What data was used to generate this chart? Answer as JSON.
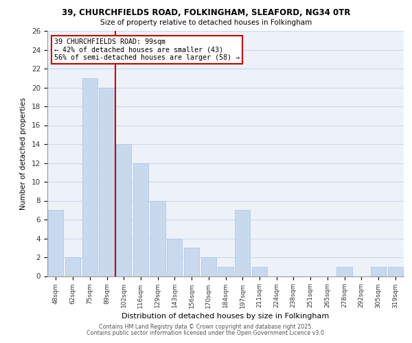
{
  "title_line1": "39, CHURCHFIELDS ROAD, FOLKINGHAM, SLEAFORD, NG34 0TR",
  "title_line2": "Size of property relative to detached houses in Folkingham",
  "xlabel": "Distribution of detached houses by size in Folkingham",
  "ylabel": "Number of detached properties",
  "bar_labels": [
    "48sqm",
    "62sqm",
    "75sqm",
    "89sqm",
    "102sqm",
    "116sqm",
    "129sqm",
    "143sqm",
    "156sqm",
    "170sqm",
    "184sqm",
    "197sqm",
    "211sqm",
    "224sqm",
    "238sqm",
    "251sqm",
    "265sqm",
    "278sqm",
    "292sqm",
    "305sqm",
    "319sqm"
  ],
  "bar_values": [
    7,
    2,
    21,
    20,
    14,
    12,
    8,
    4,
    3,
    2,
    1,
    7,
    1,
    0,
    0,
    0,
    0,
    1,
    0,
    1,
    1
  ],
  "bar_color": "#c8d9ee",
  "bar_edge_color": "#b0c8e8",
  "vline_color": "#cc0000",
  "annotation_title": "39 CHURCHFIELDS ROAD: 99sqm",
  "annotation_line2": "← 42% of detached houses are smaller (43)",
  "annotation_line3": "56% of semi-detached houses are larger (58) →",
  "ylim": [
    0,
    26
  ],
  "yticks": [
    0,
    2,
    4,
    6,
    8,
    10,
    12,
    14,
    16,
    18,
    20,
    22,
    24,
    26
  ],
  "grid_color": "#cdd8e8",
  "background_color": "#edf2f9",
  "footer_line1": "Contains HM Land Registry data © Crown copyright and database right 2025.",
  "footer_line2": "Contains public sector information licensed under the Open Government Licence v3.0."
}
